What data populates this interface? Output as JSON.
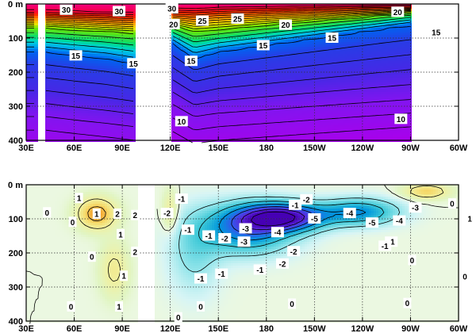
{
  "chart_data": [
    {
      "type": "heatmap",
      "title": "",
      "xlabel": "",
      "ylabel": "",
      "x_ticks": [
        "30E",
        "60E",
        "90E",
        "120E",
        "150E",
        "180",
        "150W",
        "120W",
        "90W",
        "60W"
      ],
      "x_tick_lon": [
        30,
        60,
        90,
        120,
        150,
        180,
        210,
        240,
        270,
        300
      ],
      "y_ticks": [
        "0 m",
        "100",
        "200",
        "300",
        "400"
      ],
      "y_tick_depth": [
        0,
        100,
        200,
        300,
        400
      ],
      "xlim": [
        30,
        300
      ],
      "ylim": [
        400,
        0
      ],
      "grid": true,
      "data_extent_lon": [
        42,
        271
      ],
      "masked_lon_ranges": [
        [
          37,
          42
        ],
        [
          98,
          120
        ],
        [
          271,
          300
        ]
      ],
      "masked_gap_lon": [
        [
          103,
          106
        ],
        [
          110,
          120
        ]
      ],
      "contour_interval": 1,
      "levels": [
        10,
        15,
        20,
        25,
        30
      ],
      "surface_value": 30,
      "isotherm_depths": {
        "lon": [
          42,
          60,
          80,
          98,
          120,
          135,
          150,
          180,
          210,
          240,
          271
        ],
        "30": [
          20,
          22,
          24,
          26,
          12,
          14,
          10,
          8,
          6,
          4,
          4
        ],
        "25": [
          45,
          48,
          52,
          55,
          40,
          45,
          40,
          34,
          28,
          22,
          18
        ],
        "20": [
          70,
          75,
          80,
          85,
          60,
          80,
          75,
          62,
          50,
          38,
          25
        ],
        "15": [
          140,
          150,
          160,
          175,
          110,
          160,
          140,
          120,
          100,
          80,
          60
        ],
        "10": [
          330,
          340,
          350,
          360,
          290,
          330,
          320,
          310,
          300,
          290,
          280
        ]
      },
      "contour_labels": [
        {
          "text": "30",
          "lon": 55,
          "depth": 18
        },
        {
          "text": "30",
          "lon": 88,
          "depth": 22
        },
        {
          "text": "30",
          "lon": 121,
          "depth": 14
        },
        {
          "text": "20",
          "lon": 122,
          "depth": 60
        },
        {
          "text": "25",
          "lon": 140,
          "depth": 50
        },
        {
          "text": "25",
          "lon": 162,
          "depth": 44
        },
        {
          "text": "20",
          "lon": 192,
          "depth": 62
        },
        {
          "text": "20",
          "lon": 262,
          "depth": 24
        },
        {
          "text": "15",
          "lon": 61,
          "depth": 152
        },
        {
          "text": "15",
          "lon": 97,
          "depth": 175
        },
        {
          "text": "15",
          "lon": 133,
          "depth": 168
        },
        {
          "text": "15",
          "lon": 178,
          "depth": 122
        },
        {
          "text": "15",
          "lon": 221,
          "depth": 100
        },
        {
          "text": "15",
          "lon": 286,
          "depth": 84
        },
        {
          "text": "10",
          "lon": 127,
          "depth": 345
        },
        {
          "text": "10",
          "lon": 264,
          "depth": 338
        }
      ]
    },
    {
      "type": "heatmap",
      "title": "",
      "xlabel": "",
      "ylabel": "",
      "x_ticks": [
        "30E",
        "60E",
        "90E",
        "120E",
        "150E",
        "180",
        "150W",
        "120W",
        "90W",
        "60W"
      ],
      "x_tick_lon": [
        30,
        60,
        90,
        120,
        150,
        180,
        210,
        240,
        270,
        300
      ],
      "y_ticks": [
        "0 m",
        "100",
        "200",
        "300",
        "400"
      ],
      "y_tick_depth": [
        0,
        100,
        200,
        300,
        400
      ],
      "xlim": [
        30,
        300
      ],
      "ylim": [
        400,
        0
      ],
      "grid": true,
      "masked_gap_lon": [
        [
          100,
          110
        ]
      ],
      "contour_interval": 1,
      "anomalies": [
        {
          "lon": 190,
          "depth": 95,
          "value": -5.5,
          "sx": 26,
          "sy": 40
        },
        {
          "lon": 168,
          "depth": 130,
          "value": -3.5,
          "sx": 28,
          "sy": 70
        },
        {
          "lon": 238,
          "depth": 80,
          "value": -3,
          "sx": 24,
          "sy": 38
        },
        {
          "lon": 74,
          "depth": 85,
          "value": 2.5,
          "sx": 12,
          "sy": 45
        },
        {
          "lon": 85,
          "depth": 250,
          "value": 1.2,
          "sx": 9,
          "sy": 80
        },
        {
          "lon": 135,
          "depth": 200,
          "value": -1.2,
          "sx": 16,
          "sy": 120
        },
        {
          "lon": 120,
          "depth": 80,
          "value": 1.2,
          "sx": 5,
          "sy": 60
        },
        {
          "lon": 280,
          "depth": 20,
          "value": 1.8,
          "sx": 14,
          "sy": 22
        }
      ],
      "contour_labels": [
        {
          "text": "1",
          "lon": 63,
          "depth": 40
        },
        {
          "text": "1",
          "lon": 74,
          "depth": 86
        },
        {
          "text": "2",
          "lon": 87,
          "depth": 86
        },
        {
          "text": "1",
          "lon": 89,
          "depth": 146
        },
        {
          "text": "0",
          "lon": 43,
          "depth": 82
        },
        {
          "text": "0",
          "lon": 59,
          "depth": 110
        },
        {
          "text": "2",
          "lon": 98,
          "depth": 90
        },
        {
          "text": "2",
          "lon": 98,
          "depth": 198
        },
        {
          "text": "0",
          "lon": 71,
          "depth": 212
        },
        {
          "text": "1",
          "lon": 91,
          "depth": 268
        },
        {
          "text": "1",
          "lon": 88,
          "depth": 358
        },
        {
          "text": "0",
          "lon": 58,
          "depth": 358
        },
        {
          "text": "-1",
          "lon": 127,
          "depth": 42
        },
        {
          "text": "-2",
          "lon": 118,
          "depth": 84
        },
        {
          "text": "-1",
          "lon": 131,
          "depth": 133
        },
        {
          "text": "-1",
          "lon": 144,
          "depth": 150
        },
        {
          "text": "-2",
          "lon": 154,
          "depth": 158
        },
        {
          "text": "-3",
          "lon": 167,
          "depth": 129
        },
        {
          "text": "-4",
          "lon": 187,
          "depth": 140
        },
        {
          "text": "-3",
          "lon": 166,
          "depth": 168
        },
        {
          "text": "-1",
          "lon": 139,
          "depth": 276
        },
        {
          "text": "-1",
          "lon": 152,
          "depth": 262
        },
        {
          "text": "-1",
          "lon": 176,
          "depth": 250
        },
        {
          "text": "-2",
          "lon": 190,
          "depth": 232
        },
        {
          "text": "-2",
          "lon": 197,
          "depth": 196
        },
        {
          "text": "-1",
          "lon": 198,
          "depth": 60
        },
        {
          "text": "-2",
          "lon": 205,
          "depth": 44
        },
        {
          "text": "-5",
          "lon": 210,
          "depth": 100
        },
        {
          "text": "-4",
          "lon": 232,
          "depth": 84
        },
        {
          "text": "-5",
          "lon": 246,
          "depth": 112
        },
        {
          "text": "-4",
          "lon": 263,
          "depth": 106
        },
        {
          "text": "-3",
          "lon": 273,
          "depth": 68
        },
        {
          "text": "-1",
          "lon": 258,
          "depth": 168
        },
        {
          "text": "-1",
          "lon": 254,
          "depth": 180
        },
        {
          "text": "0",
          "lon": 296,
          "depth": 56
        },
        {
          "text": "1",
          "lon": 307,
          "depth": 100
        },
        {
          "text": "0",
          "lon": 271,
          "depth": 222
        },
        {
          "text": "0",
          "lon": 304,
          "depth": 270
        },
        {
          "text": "0",
          "lon": 268,
          "depth": 348
        },
        {
          "text": "0",
          "lon": 196,
          "depth": 350
        },
        {
          "text": "0",
          "lon": 139,
          "depth": 358
        },
        {
          "text": "0",
          "lon": 125,
          "depth": 390
        }
      ]
    }
  ]
}
